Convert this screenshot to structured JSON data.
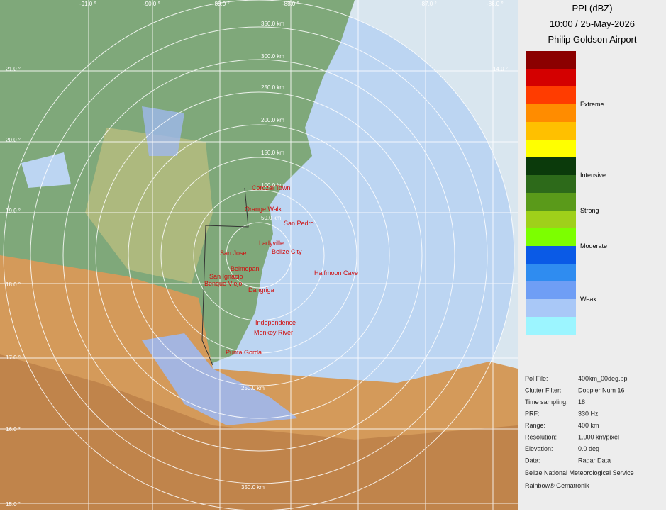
{
  "header": {
    "title": "PPI (dBZ)",
    "time": "10:00 / 25-May-2026",
    "site": "Philip Goldson Airport"
  },
  "legend": {
    "labels": [
      "Extreme",
      "Intensive",
      "Strong",
      "Moderate",
      "Weak"
    ]
  },
  "rings": [
    "350.0 km",
    "300.0 km",
    "250.0 km",
    "200.0 km",
    "150.0 km",
    "100.0 km",
    "50.0 km",
    "250.0 km",
    "350.0 km"
  ],
  "latitudes": [
    "21.0 °",
    "20.0 °",
    "19.0 °",
    "18.0 °",
    "17.0 °",
    "16.0 °",
    "15.0 °",
    "14.0 °"
  ],
  "longitudes": [
    "-91.0 °",
    "-90.0 °",
    "-89.0 °",
    "-88.0 °",
    "-87.0 °",
    "-86.0 °"
  ],
  "towns": [
    "Corozal Town",
    "Orange Walk",
    "San Pedro",
    "Belize City",
    "Ladyville",
    "San Jose",
    "Belmopan",
    "San Ignacio",
    "Benque Viejo",
    "Dangriga",
    "Halfmoon Caye",
    "Independence",
    "Monkey River",
    "Punta Gorda"
  ],
  "info": {
    "rows": [
      [
        "Pol File:",
        "400km_00deg.ppi"
      ],
      [
        "Clutter Filter:",
        "Doppler Num 16"
      ],
      [
        "Time sampling:",
        "18"
      ],
      [
        "PRF:",
        "330 Hz"
      ],
      [
        "Range:",
        "400 km"
      ],
      [
        "Resolution:",
        "1.000 km/pixel"
      ],
      [
        "Elevation:",
        "0.0 deg"
      ],
      [
        "Data:",
        "Radar Data"
      ]
    ],
    "org": "Belize National Meteorological Service",
    "software": "Rainbow® Gematronik"
  }
}
